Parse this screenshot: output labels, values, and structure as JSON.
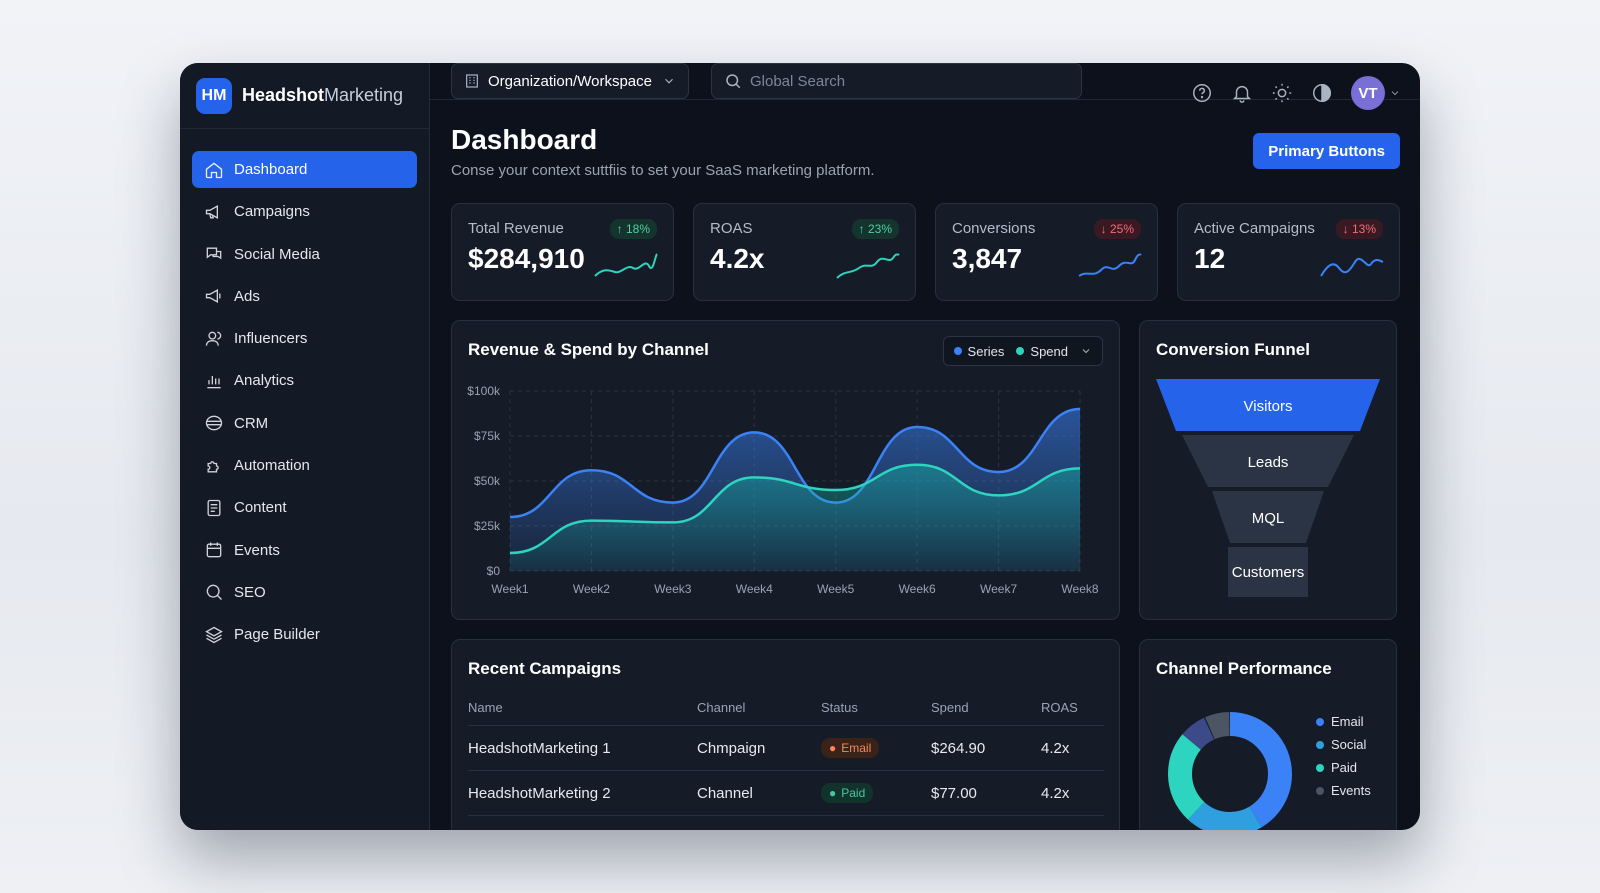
{
  "brand": {
    "logo": "HM",
    "name_bold": "Headshot",
    "name_rest": "Marketing"
  },
  "sidebar": {
    "items": [
      {
        "label": "Dashboard",
        "icon": "home-icon",
        "active": true
      },
      {
        "label": "Campaigns",
        "icon": "megaphone-icon"
      },
      {
        "label": "Social Media",
        "icon": "chat-icon"
      },
      {
        "label": "Ads",
        "icon": "megaphone-icon"
      },
      {
        "label": "Influencers",
        "icon": "users-icon"
      },
      {
        "label": "Analytics",
        "icon": "bar-chart-icon"
      },
      {
        "label": "CRM",
        "icon": "database-icon"
      },
      {
        "label": "Automation",
        "icon": "puzzle-icon"
      },
      {
        "label": "Content",
        "icon": "document-icon"
      },
      {
        "label": "Events",
        "icon": "calendar-icon"
      },
      {
        "label": "SEO",
        "icon": "search-icon"
      },
      {
        "label": "Page Builder",
        "icon": "layers-icon"
      }
    ]
  },
  "topbar": {
    "org_label": "Organization/Workspace",
    "search_placeholder": "Global Search",
    "avatar_initials": "VT"
  },
  "page": {
    "title": "Dashboard",
    "subtitle": "Conse your context suttfiis to set your SaaS marketing platform.",
    "primary_button": "Primary Buttons"
  },
  "kpis": [
    {
      "label": "Total Revenue",
      "value": "$284,910",
      "change": "↑ 18%",
      "direction": "up"
    },
    {
      "label": "ROAS",
      "value": "4.2x",
      "change": "↑ 23%",
      "direction": "up"
    },
    {
      "label": "Conversions",
      "value": "3,847",
      "change": "↓ 25%",
      "direction": "down"
    },
    {
      "label": "Active Campaigns",
      "value": "12",
      "change": "↓ 13%",
      "direction": "down"
    }
  ],
  "revenue_chart": {
    "title": "Revenue & Spend by Channel",
    "legend": [
      {
        "name": "Series",
        "color": "#3b82f6"
      },
      {
        "name": "Spend",
        "color": "#2dd4bf"
      }
    ]
  },
  "chart_data": {
    "type": "area",
    "categories": [
      "Week1",
      "Week2",
      "Week3",
      "Week4",
      "Week5",
      "Week6",
      "Week7",
      "Week8"
    ],
    "series": [
      {
        "name": "Series",
        "values": [
          30,
          56,
          38,
          77,
          38,
          80,
          55,
          90
        ]
      },
      {
        "name": "Spend",
        "values": [
          10,
          28,
          27,
          52,
          45,
          59,
          42,
          57
        ]
      }
    ],
    "yticks": [
      "$0",
      "$25k",
      "$50k",
      "$75k",
      "$100k"
    ],
    "ylim": [
      0,
      100
    ],
    "grid": true
  },
  "funnel": {
    "title": "Conversion Funnel",
    "stages": [
      "Visitors",
      "Leads",
      "MQL",
      "Customers"
    ]
  },
  "campaigns": {
    "title": "Recent Campaigns",
    "columns": [
      "Name",
      "Channel",
      "Status",
      "Spend",
      "ROAS"
    ],
    "rows": [
      {
        "name": "HeadshotMarketing 1",
        "channel": "Chmpaign",
        "status": "Email",
        "status_type": "email",
        "spend": "$264.90",
        "roas": "4.2x"
      },
      {
        "name": "HeadshotMarketing 2",
        "channel": "Channel",
        "status": "Paid",
        "status_type": "paid",
        "spend": "$77.00",
        "roas": "4.2x"
      }
    ]
  },
  "channel_performance": {
    "title": "Channel Performance",
    "legend": [
      {
        "name": "Email",
        "color": "#3b82f6"
      },
      {
        "name": "Social",
        "color": "#2f9fe0"
      },
      {
        "name": "Paid",
        "color": "#2dd4bf"
      },
      {
        "name": "Events",
        "color": "#4b5563"
      }
    ]
  }
}
